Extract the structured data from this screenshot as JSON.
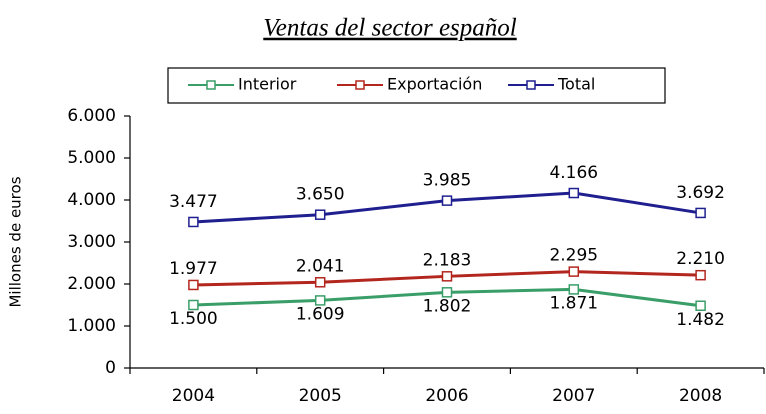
{
  "chart_data": {
    "type": "line",
    "title": "Ventas del sector español",
    "y_label": "Millones de euros",
    "categories": [
      "2004",
      "2005",
      "2006",
      "2007",
      "2008"
    ],
    "series": [
      {
        "name": "Interior",
        "color": "#3a9e68",
        "values": [
          1500,
          1609,
          1802,
          1871,
          1482
        ],
        "value_labels": [
          "1.500",
          "1.609",
          "1.802",
          "1.871",
          "1.482"
        ]
      },
      {
        "name": "Exportación",
        "color": "#b3261e",
        "values": [
          1977,
          2041,
          2183,
          2295,
          2210
        ],
        "value_labels": [
          "1.977",
          "2.041",
          "2.183",
          "2.295",
          "2.210"
        ]
      },
      {
        "name": "Total",
        "color": "#1f1f8f",
        "values": [
          3477,
          3650,
          3985,
          4166,
          3692
        ],
        "value_labels": [
          "3.477",
          "3.650",
          "3.985",
          "4.166",
          "3.692"
        ]
      }
    ],
    "ylim": [
      0,
      6000
    ],
    "yticks": [
      0,
      {
        "value": 1000,
        "label": "1.000"
      },
      {
        "value": 2000,
        "label": "2.000"
      },
      {
        "value": 3000,
        "label": "3.000"
      },
      {
        "value": 4000,
        "label": "4.000"
      },
      {
        "value": 5000,
        "label": "5.000"
      },
      {
        "value": 6000,
        "label": "6.000"
      }
    ],
    "legend": "top"
  }
}
